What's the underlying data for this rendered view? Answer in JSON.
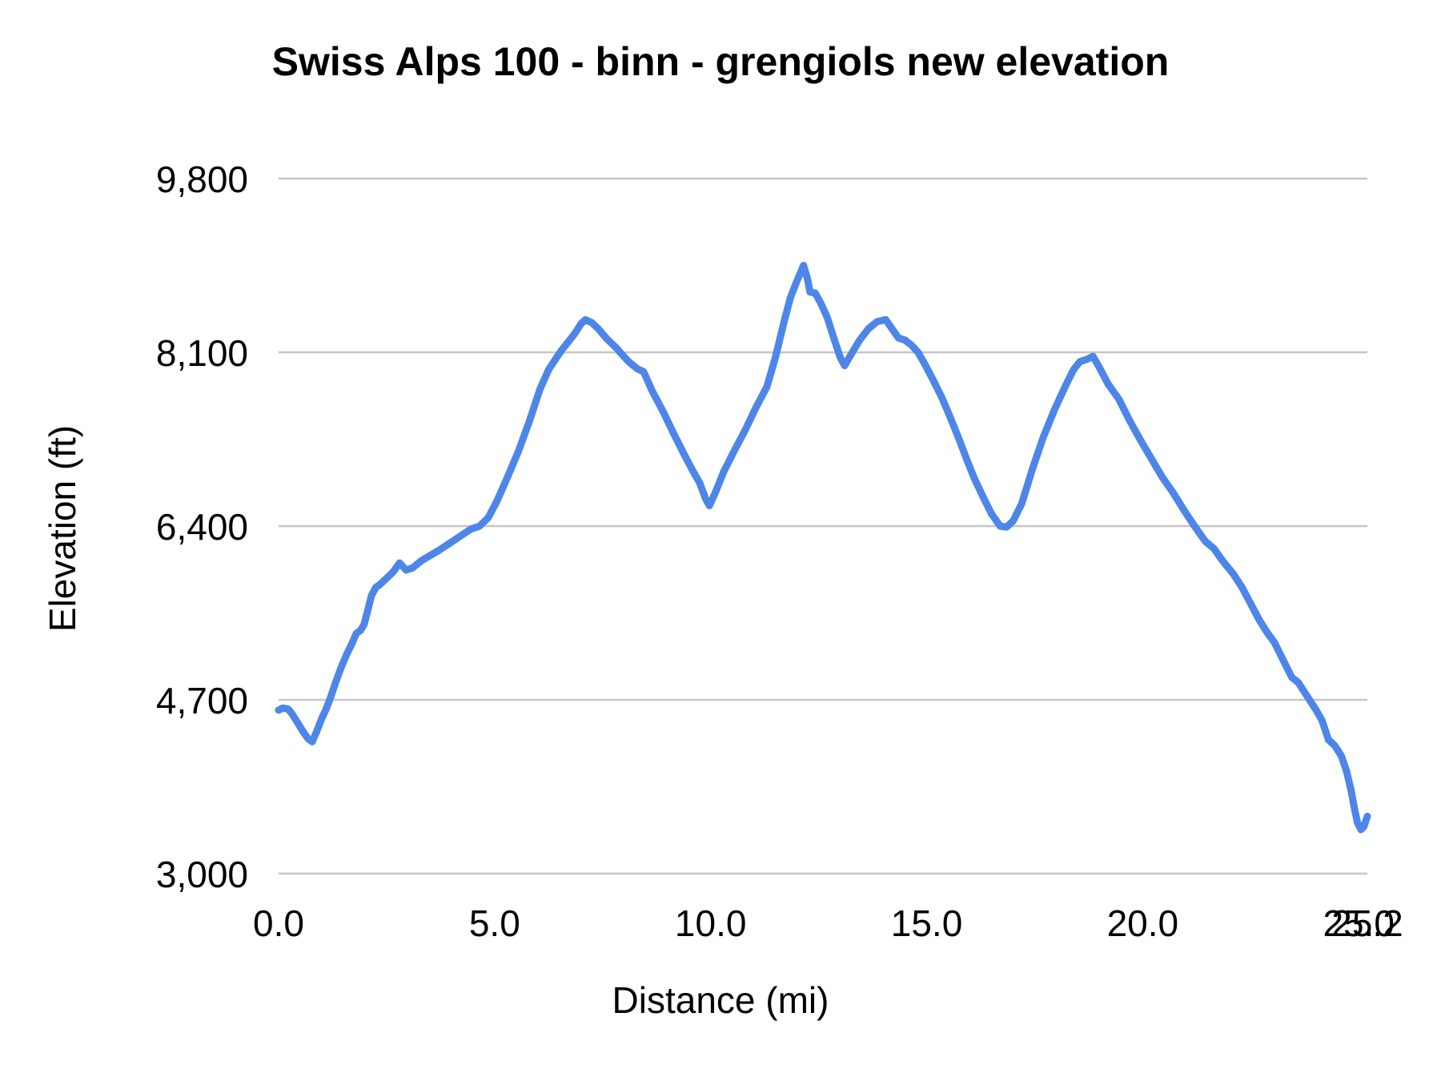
{
  "chart_data": {
    "type": "line",
    "title": "Swiss Alps 100 - binn - grengiols new elevation",
    "xlabel": "Distance (mi)",
    "ylabel": "Elevation (ft)",
    "xlim": [
      0,
      25.2
    ],
    "ylim": [
      3000,
      9800
    ],
    "grid": "horizontal gridlines at y ticks only",
    "legend": "none",
    "x_ticks": [
      {
        "value": 0,
        "label": "0.0"
      },
      {
        "value": 5,
        "label": "5.0"
      },
      {
        "value": 10,
        "label": "10.0"
      },
      {
        "value": 15,
        "label": "15.0"
      },
      {
        "value": 20,
        "label": "20.0"
      },
      {
        "value": 25,
        "label": "25.0"
      },
      {
        "value": 25.2,
        "label": "25.2"
      }
    ],
    "y_ticks": [
      {
        "value": 3000,
        "label": "3,000"
      },
      {
        "value": 4700,
        "label": "4,700"
      },
      {
        "value": 6400,
        "label": "6,400"
      },
      {
        "value": 8100,
        "label": "8,100"
      },
      {
        "value": 9800,
        "label": "9,800"
      }
    ],
    "colors": {
      "line": "#4d86e8",
      "gridline": "#c6c6c6",
      "text": "#000000",
      "background": "#ffffff"
    },
    "series": [
      {
        "name": "elevation",
        "x": [
          0,
          0.1,
          0.22,
          0.3,
          0.42,
          0.55,
          0.68,
          0.78,
          0.88,
          1.0,
          1.1,
          1.2,
          1.32,
          1.45,
          1.58,
          1.7,
          1.8,
          1.9,
          1.98,
          2.06,
          2.15,
          2.25,
          2.35,
          2.5,
          2.65,
          2.8,
          2.95,
          3.1,
          3.3,
          3.5,
          3.7,
          3.95,
          4.2,
          4.45,
          4.65,
          4.85,
          5.05,
          5.3,
          5.55,
          5.8,
          6.05,
          6.25,
          6.42,
          6.55,
          6.7,
          6.85,
          7.0,
          7.1,
          7.25,
          7.4,
          7.6,
          7.8,
          7.95,
          8.1,
          8.3,
          8.45,
          8.65,
          8.9,
          9.15,
          9.4,
          9.6,
          9.75,
          9.88,
          9.97,
          10.1,
          10.3,
          10.55,
          10.8,
          11.05,
          11.3,
          11.5,
          11.7,
          11.85,
          12.0,
          12.15,
          12.24,
          12.3,
          12.42,
          12.55,
          12.7,
          12.85,
          13.0,
          13.1,
          13.25,
          13.45,
          13.65,
          13.85,
          14.05,
          14.2,
          14.35,
          14.5,
          14.65,
          14.8,
          14.95,
          15.15,
          15.35,
          15.55,
          15.75,
          15.92,
          16.1,
          16.3,
          16.5,
          16.7,
          16.85,
          17.0,
          17.2,
          17.45,
          17.7,
          17.95,
          18.2,
          18.4,
          18.55,
          18.7,
          18.85,
          19.0,
          19.2,
          19.45,
          19.7,
          19.95,
          20.2,
          20.45,
          20.7,
          20.95,
          21.2,
          21.45,
          21.65,
          21.85,
          22.1,
          22.3,
          22.5,
          22.7,
          22.88,
          23.05,
          23.25,
          23.45,
          23.6,
          23.8,
          24.0,
          24.15,
          24.3,
          24.45,
          24.6,
          24.72,
          24.82,
          24.9,
          24.97,
          25.05,
          25.12,
          25.2
        ],
        "y": [
          4600,
          4620,
          4610,
          4570,
          4490,
          4400,
          4320,
          4290,
          4390,
          4520,
          4610,
          4720,
          4870,
          5020,
          5150,
          5250,
          5350,
          5380,
          5440,
          5570,
          5720,
          5800,
          5830,
          5890,
          5950,
          6040,
          5970,
          5990,
          6060,
          6110,
          6160,
          6230,
          6300,
          6370,
          6400,
          6480,
          6640,
          6880,
          7130,
          7420,
          7740,
          7930,
          8040,
          8120,
          8200,
          8280,
          8380,
          8420,
          8390,
          8330,
          8230,
          8150,
          8080,
          8010,
          7940,
          7910,
          7720,
          7520,
          7300,
          7090,
          6930,
          6820,
          6670,
          6600,
          6720,
          6930,
          7140,
          7340,
          7560,
          7760,
          8050,
          8400,
          8640,
          8800,
          8950,
          8820,
          8690,
          8680,
          8580,
          8440,
          8240,
          8050,
          7970,
          8080,
          8220,
          8330,
          8400,
          8420,
          8330,
          8240,
          8220,
          8170,
          8100,
          7990,
          7830,
          7660,
          7460,
          7250,
          7060,
          6870,
          6690,
          6520,
          6400,
          6390,
          6450,
          6620,
          6960,
          7270,
          7530,
          7760,
          7930,
          8010,
          8030,
          8060,
          7950,
          7790,
          7640,
          7430,
          7240,
          7060,
          6880,
          6730,
          6560,
          6400,
          6250,
          6180,
          6060,
          5930,
          5800,
          5640,
          5480,
          5360,
          5260,
          5090,
          4920,
          4870,
          4740,
          4610,
          4500,
          4310,
          4250,
          4150,
          4000,
          3820,
          3640,
          3500,
          3430,
          3460,
          3560
        ]
      }
    ]
  }
}
